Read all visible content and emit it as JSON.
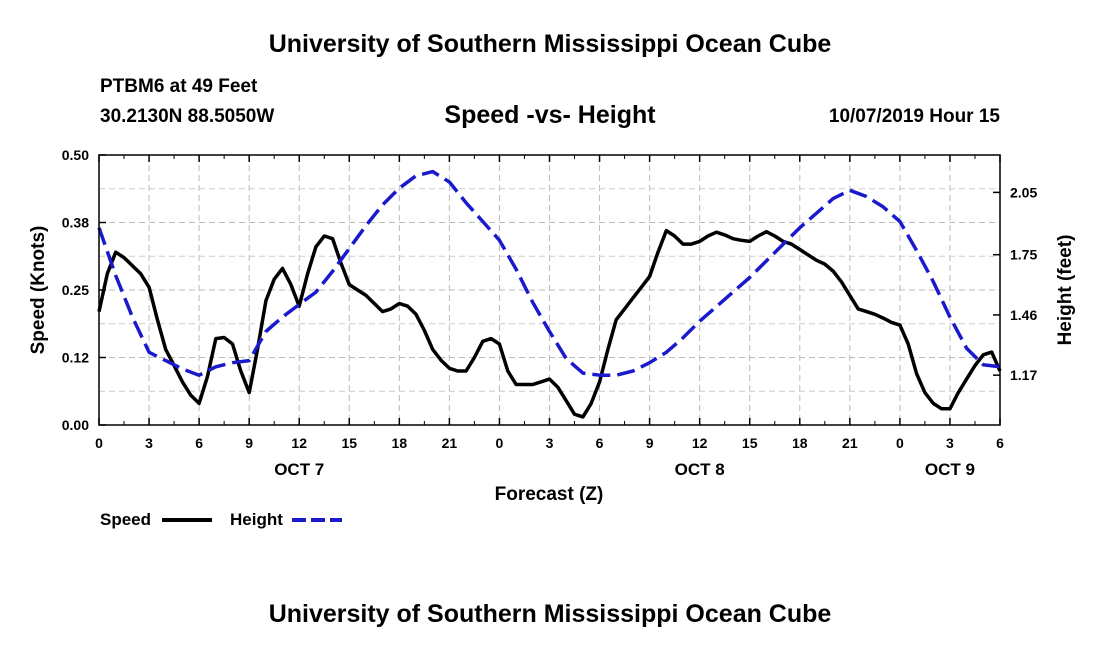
{
  "header": {
    "title": "University of Southern Mississippi Ocean Cube",
    "station": "PTBM6 at 49 Feet",
    "coords": "30.2130N 88.5050W",
    "subtitle": "Speed -vs- Height",
    "datetime": "10/07/2019 Hour 15"
  },
  "footer": {
    "title": "University of Southern Mississippi Ocean Cube"
  },
  "chart_data": {
    "type": "line",
    "xlabel": "Forecast (Z)",
    "ylabel_left": "Speed (Knots)",
    "ylabel_right": "Height (feet)",
    "x_range_hours": [
      0,
      54
    ],
    "x_ticks": [
      {
        "h": 0,
        "label": "0"
      },
      {
        "h": 3,
        "label": "3"
      },
      {
        "h": 6,
        "label": "6"
      },
      {
        "h": 9,
        "label": "9"
      },
      {
        "h": 12,
        "label": "12"
      },
      {
        "h": 15,
        "label": "15"
      },
      {
        "h": 18,
        "label": "18"
      },
      {
        "h": 21,
        "label": "21"
      },
      {
        "h": 24,
        "label": "0"
      },
      {
        "h": 27,
        "label": "3"
      },
      {
        "h": 30,
        "label": "6"
      },
      {
        "h": 33,
        "label": "9"
      },
      {
        "h": 36,
        "label": "12"
      },
      {
        "h": 39,
        "label": "15"
      },
      {
        "h": 42,
        "label": "18"
      },
      {
        "h": 45,
        "label": "21"
      },
      {
        "h": 48,
        "label": "0"
      },
      {
        "h": 51,
        "label": "3"
      },
      {
        "h": 54,
        "label": "6"
      }
    ],
    "day_labels": [
      {
        "h": 12,
        "label": "OCT 7"
      },
      {
        "h": 36,
        "label": "OCT 8"
      },
      {
        "h": 51,
        "label": "OCT 9"
      }
    ],
    "y_left": {
      "range": [
        0,
        0.5
      ],
      "ticks": [
        {
          "v": 0.0,
          "label": "0.00"
        },
        {
          "v": 0.125,
          "label": "0.12"
        },
        {
          "v": 0.25,
          "label": "0.25"
        },
        {
          "v": 0.375,
          "label": "0.38"
        },
        {
          "v": 0.5,
          "label": "0.50"
        }
      ]
    },
    "y_right": {
      "range": [
        0.93,
        2.23
      ],
      "ticks": [
        {
          "v": 1.17,
          "label": "1.17"
        },
        {
          "v": 1.46,
          "label": "1.46"
        },
        {
          "v": 1.75,
          "label": "1.75"
        },
        {
          "v": 2.05,
          "label": "2.05"
        }
      ]
    },
    "grid": true,
    "legend": {
      "position": "bottom-left",
      "items": [
        {
          "label": "Speed",
          "color": "#000000",
          "style": "solid"
        },
        {
          "label": "Height",
          "color": "#1a1acc",
          "style": "dashed"
        }
      ]
    },
    "series": [
      {
        "name": "Speed",
        "axis": "left",
        "color": "#000000",
        "style": "solid",
        "points": [
          [
            0,
            0.21
          ],
          [
            0.5,
            0.28
          ],
          [
            1,
            0.32
          ],
          [
            1.5,
            0.31
          ],
          [
            2,
            0.295
          ],
          [
            2.5,
            0.28
          ],
          [
            3,
            0.255
          ],
          [
            3.5,
            0.195
          ],
          [
            4,
            0.14
          ],
          [
            4.5,
            0.11
          ],
          [
            5,
            0.08
          ],
          [
            5.5,
            0.055
          ],
          [
            6,
            0.04
          ],
          [
            6.5,
            0.09
          ],
          [
            7,
            0.16
          ],
          [
            7.5,
            0.162
          ],
          [
            8,
            0.15
          ],
          [
            8.5,
            0.1
          ],
          [
            9,
            0.06
          ],
          [
            9.5,
            0.14
          ],
          [
            10,
            0.23
          ],
          [
            10.5,
            0.27
          ],
          [
            11,
            0.29
          ],
          [
            11.5,
            0.26
          ],
          [
            12,
            0.22
          ],
          [
            12.5,
            0.28
          ],
          [
            13,
            0.33
          ],
          [
            13.5,
            0.35
          ],
          [
            14,
            0.345
          ],
          [
            14.5,
            0.3
          ],
          [
            15,
            0.26
          ],
          [
            15.5,
            0.25
          ],
          [
            16,
            0.24
          ],
          [
            16.5,
            0.225
          ],
          [
            17,
            0.21
          ],
          [
            17.5,
            0.215
          ],
          [
            18,
            0.225
          ],
          [
            18.5,
            0.22
          ],
          [
            19,
            0.205
          ],
          [
            19.5,
            0.175
          ],
          [
            20,
            0.14
          ],
          [
            20.5,
            0.12
          ],
          [
            21,
            0.105
          ],
          [
            21.5,
            0.1
          ],
          [
            22,
            0.1
          ],
          [
            22.5,
            0.125
          ],
          [
            23,
            0.155
          ],
          [
            23.5,
            0.16
          ],
          [
            24,
            0.15
          ],
          [
            24.5,
            0.1
          ],
          [
            25,
            0.075
          ],
          [
            25.5,
            0.075
          ],
          [
            26,
            0.075
          ],
          [
            26.5,
            0.08
          ],
          [
            27,
            0.085
          ],
          [
            27.5,
            0.07
          ],
          [
            28,
            0.045
          ],
          [
            28.5,
            0.02
          ],
          [
            29,
            0.015
          ],
          [
            29.5,
            0.04
          ],
          [
            30,
            0.08
          ],
          [
            30.5,
            0.14
          ],
          [
            31,
            0.195
          ],
          [
            31.5,
            0.215
          ],
          [
            32,
            0.235
          ],
          [
            32.5,
            0.255
          ],
          [
            33,
            0.275
          ],
          [
            33.5,
            0.32
          ],
          [
            34,
            0.36
          ],
          [
            34.5,
            0.35
          ],
          [
            35,
            0.335
          ],
          [
            35.5,
            0.335
          ],
          [
            36,
            0.34
          ],
          [
            36.5,
            0.35
          ],
          [
            37,
            0.357
          ],
          [
            37.5,
            0.352
          ],
          [
            38,
            0.345
          ],
          [
            38.5,
            0.342
          ],
          [
            39,
            0.34
          ],
          [
            39.5,
            0.35
          ],
          [
            40,
            0.358
          ],
          [
            40.5,
            0.35
          ],
          [
            41,
            0.34
          ],
          [
            41.5,
            0.335
          ],
          [
            42,
            0.325
          ],
          [
            42.5,
            0.315
          ],
          [
            43,
            0.305
          ],
          [
            43.5,
            0.298
          ],
          [
            44,
            0.285
          ],
          [
            44.5,
            0.265
          ],
          [
            45,
            0.24
          ],
          [
            45.5,
            0.215
          ],
          [
            46,
            0.21
          ],
          [
            46.5,
            0.205
          ],
          [
            47,
            0.198
          ],
          [
            47.5,
            0.19
          ],
          [
            48,
            0.185
          ],
          [
            48.5,
            0.15
          ],
          [
            49,
            0.095
          ],
          [
            49.5,
            0.06
          ],
          [
            50,
            0.04
          ],
          [
            50.5,
            0.03
          ],
          [
            51,
            0.03
          ],
          [
            51.5,
            0.06
          ],
          [
            52,
            0.085
          ],
          [
            52.5,
            0.11
          ],
          [
            53,
            0.13
          ],
          [
            53.5,
            0.135
          ],
          [
            54,
            0.1
          ]
        ]
      },
      {
        "name": "Height",
        "axis": "right",
        "color": "#1a1acc",
        "style": "dashed",
        "points": [
          [
            0,
            1.88
          ],
          [
            1,
            1.65
          ],
          [
            2,
            1.45
          ],
          [
            3,
            1.28
          ],
          [
            4,
            1.24
          ],
          [
            5,
            1.2
          ],
          [
            6,
            1.17
          ],
          [
            7,
            1.21
          ],
          [
            8,
            1.23
          ],
          [
            9,
            1.24
          ],
          [
            10,
            1.38
          ],
          [
            11,
            1.45
          ],
          [
            12,
            1.51
          ],
          [
            13,
            1.57
          ],
          [
            14,
            1.67
          ],
          [
            15,
            1.78
          ],
          [
            16,
            1.89
          ],
          [
            17,
            1.99
          ],
          [
            18,
            2.07
          ],
          [
            19,
            2.13
          ],
          [
            20,
            2.15
          ],
          [
            21,
            2.1
          ],
          [
            22,
            2.0
          ],
          [
            23,
            1.91
          ],
          [
            24,
            1.82
          ],
          [
            25,
            1.68
          ],
          [
            26,
            1.52
          ],
          [
            27,
            1.38
          ],
          [
            28,
            1.25
          ],
          [
            29,
            1.18
          ],
          [
            30,
            1.17
          ],
          [
            31,
            1.17
          ],
          [
            32,
            1.19
          ],
          [
            33,
            1.23
          ],
          [
            34,
            1.28
          ],
          [
            35,
            1.35
          ],
          [
            36,
            1.43
          ],
          [
            37,
            1.5
          ],
          [
            38,
            1.57
          ],
          [
            39,
            1.64
          ],
          [
            40,
            1.72
          ],
          [
            41,
            1.8
          ],
          [
            42,
            1.88
          ],
          [
            43,
            1.95
          ],
          [
            44,
            2.02
          ],
          [
            45,
            2.06
          ],
          [
            46,
            2.03
          ],
          [
            47,
            1.98
          ],
          [
            48,
            1.91
          ],
          [
            49,
            1.77
          ],
          [
            50,
            1.62
          ],
          [
            51,
            1.45
          ],
          [
            52,
            1.3
          ],
          [
            53,
            1.22
          ],
          [
            54,
            1.21
          ]
        ]
      }
    ]
  }
}
